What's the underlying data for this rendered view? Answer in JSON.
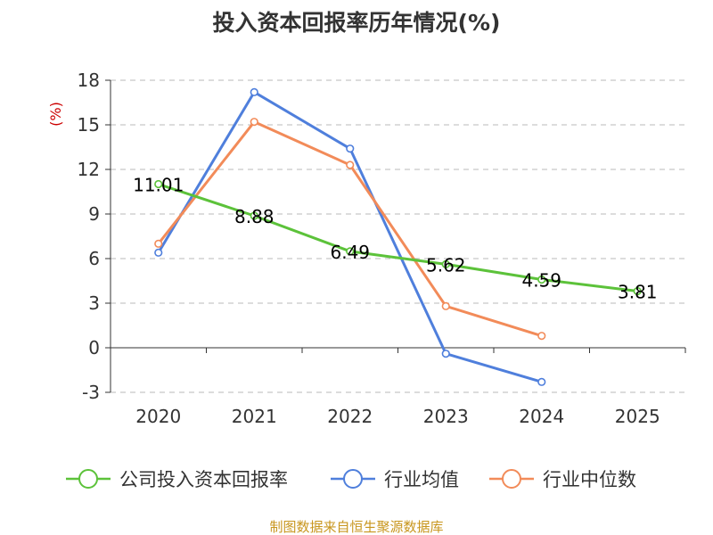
{
  "chart_data": {
    "type": "line",
    "title": "投入资本回报率历年情况(%)",
    "ylabel": "(%)",
    "xlabel": "",
    "categories": [
      "2020",
      "2021",
      "2022",
      "2023",
      "2024",
      "2025"
    ],
    "ylim": [
      -3,
      18
    ],
    "yticks": [
      "18",
      "15",
      "12",
      "9",
      "6",
      "3",
      "0",
      "-3"
    ],
    "grid": "horizontal-dashed",
    "legend_position": "bottom",
    "series": [
      {
        "name": "公司投入资本回报率",
        "color": "#5cc23a",
        "values": [
          11.01,
          8.88,
          6.49,
          5.62,
          4.59,
          3.81
        ],
        "labels": [
          "11.01",
          "8.88",
          "6.49",
          "5.62",
          "4.59",
          "3.81"
        ]
      },
      {
        "name": "行业均值",
        "color": "#4f7fdc",
        "values": [
          6.4,
          17.2,
          13.4,
          -0.4,
          -2.3,
          null
        ]
      },
      {
        "name": "行业中位数",
        "color": "#f28b59",
        "values": [
          7.0,
          15.2,
          12.3,
          2.8,
          0.8,
          null
        ]
      }
    ],
    "source": "制图数据来自恒生聚源数据库"
  }
}
